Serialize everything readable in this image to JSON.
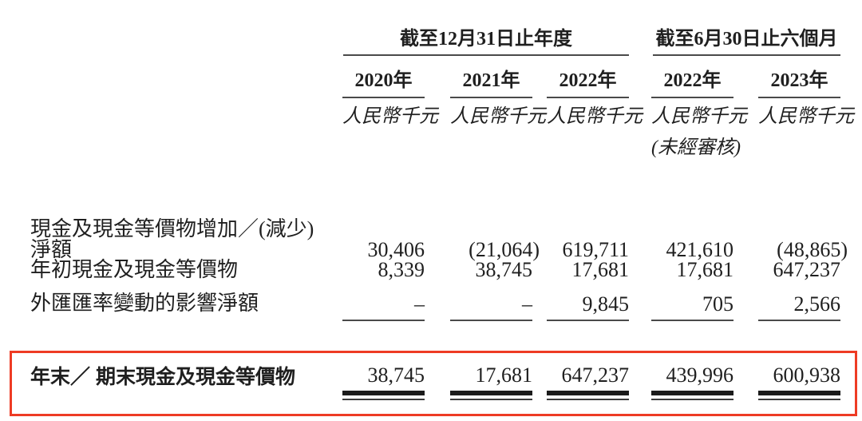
{
  "colors": {
    "text": "#1f1f1f",
    "rule_line": "#4a4a4a",
    "total_bar": "#1b1b1b",
    "highlight_box_border": "#ee3b24",
    "background": "#ffffff"
  },
  "table": {
    "column_groups": [
      {
        "label": "截至12月31日止年度",
        "columns_spanned": 3
      },
      {
        "label": "截至6月30日止六個月",
        "columns_spanned": 2
      }
    ],
    "columns": [
      {
        "year": "2020年",
        "unit": "人民幣千元",
        "note": ""
      },
      {
        "year": "2021年",
        "unit": "人民幣千元",
        "note": ""
      },
      {
        "year": "2022年",
        "unit": "人民幣千元",
        "note": ""
      },
      {
        "year": "2022年",
        "unit": "人民幣千元",
        "note": "(未經審核)"
      },
      {
        "year": "2023年",
        "unit": "人民幣千元",
        "note": ""
      }
    ],
    "rows": [
      {
        "label": "現金及現金等價物增加／(減少) 淨額",
        "values": [
          "30,406",
          "(21,064)",
          "619,711",
          "421,610",
          "(48,865)"
        ]
      },
      {
        "label": "年初現金及現金等價物",
        "values": [
          "8,339",
          "38,745",
          "17,681",
          "17,681",
          "647,237"
        ]
      },
      {
        "label": "外匯匯率變動的影響淨額",
        "values": [
          "–",
          "–",
          "9,845",
          "705",
          "2,566"
        ]
      }
    ],
    "total_row": {
      "label": "年末／ 期末現金及現金等價物",
      "values": [
        "38,745",
        "17,681",
        "647,237",
        "439,996",
        "600,938"
      ]
    }
  }
}
